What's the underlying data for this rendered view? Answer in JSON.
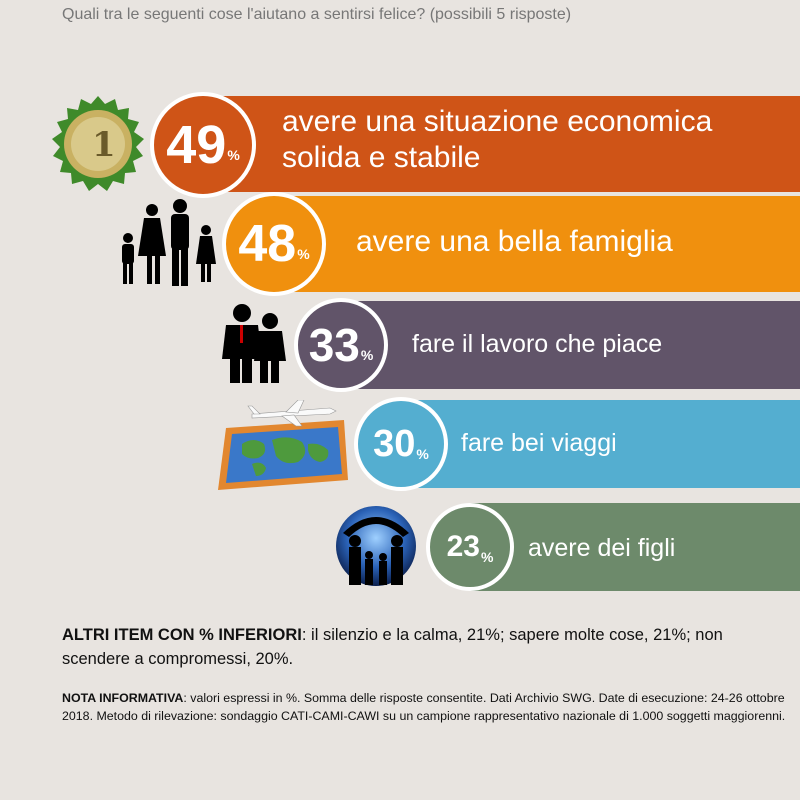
{
  "question": "Quali tra le seguenti cose l'aiutano a sentirsi felice? (possibili 5 risposte)",
  "pct_symbol": "%",
  "items": [
    {
      "value": "49",
      "label_line1": "avere una situazione economica",
      "label_line2": "solida e stabile",
      "color": "#cf5417",
      "icon": "euro-coin-icon"
    },
    {
      "value": "48",
      "label_line1": "avere una bella famiglia",
      "label_line2": "",
      "color": "#f0900e",
      "icon": "family-silhouette-icon"
    },
    {
      "value": "33",
      "label_line1": "fare il lavoro che piace",
      "label_line2": "",
      "color": "#615469",
      "icon": "business-people-icon"
    },
    {
      "value": "30",
      "label_line1": "fare bei viaggi",
      "label_line2": "",
      "color": "#54aed0",
      "icon": "airplane-map-icon"
    },
    {
      "value": "23",
      "label_line1": "avere dei figli",
      "label_line2": "",
      "color": "#6d8a6b",
      "icon": "children-silhouette-icon"
    }
  ],
  "others": {
    "title": "ALTRI ITEM CON % INFERIORI",
    "text": ": il silenzio e la calma, 21%; sapere molte cose, 21%; non scendere a compromessi, 20%."
  },
  "note": {
    "title": "NOTA INFORMATIVA",
    "text": ": valori espressi in %. Somma delle risposte consentite. Dati Archivio SWG. Date di esecuzione: 24-26 ottobre 2018. Metodo di rilevazione: sondaggio CATI-CAMI-CAWI su un campione rappresentativo nazionale di 1.000 soggetti maggiorenni."
  },
  "chart_data": {
    "type": "bar",
    "title": "Quali tra le seguenti cose l'aiutano a sentirsi felice? (possibili 5 risposte)",
    "categories": [
      "avere una situazione economica solida e stabile",
      "avere una bella famiglia",
      "fare il lavoro che piace",
      "fare bei viaggi",
      "avere dei figli"
    ],
    "values": [
      49,
      48,
      33,
      30,
      23
    ],
    "unit": "%"
  }
}
